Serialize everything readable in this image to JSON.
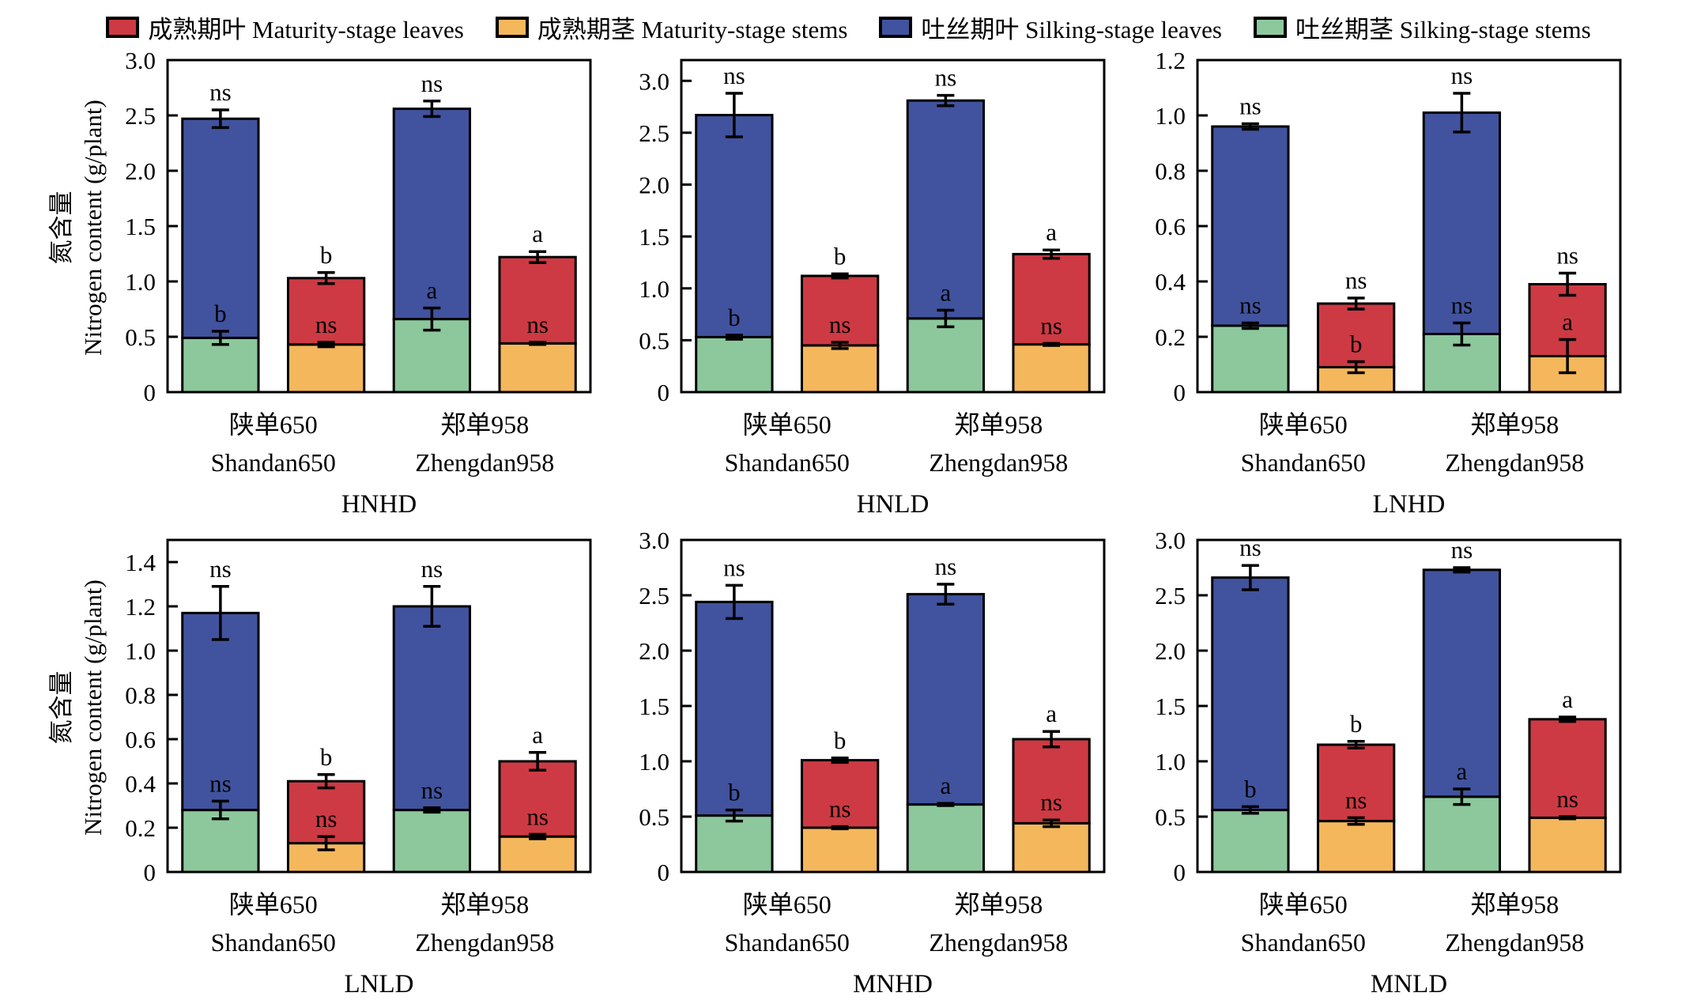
{
  "figure": {
    "y_axis_label_cn": "氮含量",
    "y_axis_label_en": "Nitrogen content (g/plant)"
  },
  "legend": [
    {
      "label": "成熟期叶 Maturity-stage leaves",
      "color": "#CD3A43",
      "icon": "maturity-leaves-swatch"
    },
    {
      "label": "成熟期茎 Maturity-stage stems",
      "color": "#F5B75C",
      "icon": "maturity-stems-swatch"
    },
    {
      "label": "吐丝期叶 Silking-stage leaves",
      "color": "#41539E",
      "icon": "silking-leaves-swatch"
    },
    {
      "label": "吐丝期茎 Silking-stage stems",
      "color": "#8CC89C",
      "icon": "silking-stems-swatch"
    }
  ],
  "chart_data": [
    {
      "type": "bar",
      "stacked": true,
      "title": "HNHD",
      "ylabel": "氮含量 Nitrogen content (g/plant)",
      "ylim": [
        0,
        3.0
      ],
      "ytick_step": 0.5,
      "ytick_max": 3.0,
      "grid": false,
      "categories": [
        {
          "cn": "陕单650",
          "en": "Shandan650"
        },
        {
          "cn": "郑单958",
          "en": "Zhengdan958"
        }
      ],
      "bars": [
        {
          "category": 0,
          "stage": "silking",
          "stem": 0.49,
          "total": 2.47,
          "stem_err": 0.06,
          "total_err": 0.08,
          "stem_sig": "b",
          "total_sig": "ns"
        },
        {
          "category": 0,
          "stage": "maturity",
          "stem": 0.43,
          "total": 1.03,
          "stem_err": 0.02,
          "total_err": 0.05,
          "stem_sig": "ns",
          "total_sig": "b"
        },
        {
          "category": 1,
          "stage": "silking",
          "stem": 0.66,
          "total": 2.56,
          "stem_err": 0.1,
          "total_err": 0.07,
          "stem_sig": "a",
          "total_sig": "ns"
        },
        {
          "category": 1,
          "stage": "maturity",
          "stem": 0.44,
          "total": 1.22,
          "stem_err": 0.01,
          "total_err": 0.05,
          "stem_sig": "ns",
          "total_sig": "a"
        }
      ]
    },
    {
      "type": "bar",
      "stacked": true,
      "title": "HNLD",
      "ylabel": "氮含量 Nitrogen content (g/plant)",
      "ylim": [
        0,
        3.2
      ],
      "ytick_step": 0.5,
      "ytick_max": 3.0,
      "grid": false,
      "categories": [
        {
          "cn": "陕单650",
          "en": "Shandan650"
        },
        {
          "cn": "郑单958",
          "en": "Zhengdan958"
        }
      ],
      "bars": [
        {
          "category": 0,
          "stage": "silking",
          "stem": 0.53,
          "total": 2.67,
          "stem_err": 0.02,
          "total_err": 0.21,
          "stem_sig": "b",
          "total_sig": "ns"
        },
        {
          "category": 0,
          "stage": "maturity",
          "stem": 0.45,
          "total": 1.12,
          "stem_err": 0.03,
          "total_err": 0.02,
          "stem_sig": "ns",
          "total_sig": "b"
        },
        {
          "category": 1,
          "stage": "silking",
          "stem": 0.71,
          "total": 2.81,
          "stem_err": 0.08,
          "total_err": 0.05,
          "stem_sig": "a",
          "total_sig": "ns"
        },
        {
          "category": 1,
          "stage": "maturity",
          "stem": 0.46,
          "total": 1.33,
          "stem_err": 0.01,
          "total_err": 0.04,
          "stem_sig": "ns",
          "total_sig": "a"
        }
      ]
    },
    {
      "type": "bar",
      "stacked": true,
      "title": "LNHD",
      "ylabel": "氮含量 Nitrogen content (g/plant)",
      "ylim": [
        0,
        1.2
      ],
      "ytick_step": 0.2,
      "ytick_max": 1.2,
      "grid": false,
      "categories": [
        {
          "cn": "陕单650",
          "en": "Shandan650"
        },
        {
          "cn": "郑单958",
          "en": "Zhengdan958"
        }
      ],
      "bars": [
        {
          "category": 0,
          "stage": "silking",
          "stem": 0.24,
          "total": 0.96,
          "stem_err": 0.01,
          "total_err": 0.01,
          "stem_sig": "ns",
          "total_sig": "ns"
        },
        {
          "category": 0,
          "stage": "maturity",
          "stem": 0.09,
          "total": 0.32,
          "stem_err": 0.02,
          "total_err": 0.02,
          "stem_sig": "b",
          "total_sig": "ns"
        },
        {
          "category": 1,
          "stage": "silking",
          "stem": 0.21,
          "total": 1.01,
          "stem_err": 0.04,
          "total_err": 0.07,
          "stem_sig": "ns",
          "total_sig": "ns"
        },
        {
          "category": 1,
          "stage": "maturity",
          "stem": 0.13,
          "total": 0.39,
          "stem_err": 0.06,
          "total_err": 0.04,
          "stem_sig": "a",
          "total_sig": "ns"
        }
      ]
    },
    {
      "type": "bar",
      "stacked": true,
      "title": "LNLD",
      "ylabel": "氮含量 Nitrogen content (g/plant)",
      "ylim": [
        0,
        1.5
      ],
      "ytick_step": 0.2,
      "ytick_max": 1.4,
      "grid": false,
      "categories": [
        {
          "cn": "陕单650",
          "en": "Shandan650"
        },
        {
          "cn": "郑单958",
          "en": "Zhengdan958"
        }
      ],
      "bars": [
        {
          "category": 0,
          "stage": "silking",
          "stem": 0.28,
          "total": 1.17,
          "stem_err": 0.04,
          "total_err": 0.12,
          "stem_sig": "ns",
          "total_sig": "ns"
        },
        {
          "category": 0,
          "stage": "maturity",
          "stem": 0.13,
          "total": 0.41,
          "stem_err": 0.03,
          "total_err": 0.03,
          "stem_sig": "ns",
          "total_sig": "b"
        },
        {
          "category": 1,
          "stage": "silking",
          "stem": 0.28,
          "total": 1.2,
          "stem_err": 0.01,
          "total_err": 0.09,
          "stem_sig": "ns",
          "total_sig": "ns"
        },
        {
          "category": 1,
          "stage": "maturity",
          "stem": 0.16,
          "total": 0.5,
          "stem_err": 0.01,
          "total_err": 0.04,
          "stem_sig": "ns",
          "total_sig": "a"
        }
      ]
    },
    {
      "type": "bar",
      "stacked": true,
      "title": "MNHD",
      "ylabel": "氮含量 Nitrogen content (g/plant)",
      "ylim": [
        0,
        3.0
      ],
      "ytick_step": 0.5,
      "ytick_max": 3.0,
      "grid": false,
      "categories": [
        {
          "cn": "陕单650",
          "en": "Shandan650"
        },
        {
          "cn": "郑单958",
          "en": "Zhengdan958"
        }
      ],
      "bars": [
        {
          "category": 0,
          "stage": "silking",
          "stem": 0.51,
          "total": 2.44,
          "stem_err": 0.05,
          "total_err": 0.15,
          "stem_sig": "b",
          "total_sig": "ns"
        },
        {
          "category": 0,
          "stage": "maturity",
          "stem": 0.4,
          "total": 1.01,
          "stem_err": 0.01,
          "total_err": 0.02,
          "stem_sig": "ns",
          "total_sig": "b"
        },
        {
          "category": 1,
          "stage": "silking",
          "stem": 0.61,
          "total": 2.51,
          "stem_err": 0.01,
          "total_err": 0.09,
          "stem_sig": "a",
          "total_sig": "ns"
        },
        {
          "category": 1,
          "stage": "maturity",
          "stem": 0.44,
          "total": 1.2,
          "stem_err": 0.03,
          "total_err": 0.07,
          "stem_sig": "ns",
          "total_sig": "a"
        }
      ]
    },
    {
      "type": "bar",
      "stacked": true,
      "title": "MNLD",
      "ylabel": "氮含量 Nitrogen content (g/plant)",
      "ylim": [
        0,
        3.0
      ],
      "ytick_step": 0.5,
      "ytick_max": 3.0,
      "grid": false,
      "categories": [
        {
          "cn": "陕单650",
          "en": "Shandan650"
        },
        {
          "cn": "郑单958",
          "en": "Zhengdan958"
        }
      ],
      "bars": [
        {
          "category": 0,
          "stage": "silking",
          "stem": 0.56,
          "total": 2.66,
          "stem_err": 0.03,
          "total_err": 0.11,
          "stem_sig": "b",
          "total_sig": "ns"
        },
        {
          "category": 0,
          "stage": "maturity",
          "stem": 0.46,
          "total": 1.15,
          "stem_err": 0.03,
          "total_err": 0.03,
          "stem_sig": "ns",
          "total_sig": "b"
        },
        {
          "category": 1,
          "stage": "silking",
          "stem": 0.68,
          "total": 2.73,
          "stem_err": 0.07,
          "total_err": 0.02,
          "stem_sig": "a",
          "total_sig": "ns"
        },
        {
          "category": 1,
          "stage": "maturity",
          "stem": 0.49,
          "total": 1.38,
          "stem_err": 0.01,
          "total_err": 0.02,
          "stem_sig": "ns",
          "total_sig": "a"
        }
      ]
    }
  ]
}
